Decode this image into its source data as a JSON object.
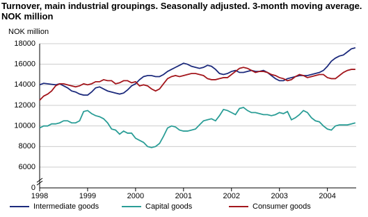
{
  "chart_data": {
    "type": "line",
    "title": "Turnover, main industrial groupings. Seasonally adjusted. 3-month moving average. NOK million",
    "y_label": "NOK million",
    "x": [
      1998.0,
      1998.083,
      1998.167,
      1998.25,
      1998.333,
      1998.417,
      1998.5,
      1998.583,
      1998.667,
      1998.75,
      1998.833,
      1998.917,
      1999.0,
      1999.083,
      1999.167,
      1999.25,
      1999.333,
      1999.417,
      1999.5,
      1999.583,
      1999.667,
      1999.75,
      1999.833,
      1999.917,
      2000.0,
      2000.083,
      2000.167,
      2000.25,
      2000.333,
      2000.417,
      2000.5,
      2000.583,
      2000.667,
      2000.75,
      2000.833,
      2000.917,
      2001.0,
      2001.083,
      2001.167,
      2001.25,
      2001.333,
      2001.417,
      2001.5,
      2001.583,
      2001.667,
      2001.75,
      2001.833,
      2001.917,
      2002.0,
      2002.083,
      2002.167,
      2002.25,
      2002.333,
      2002.417,
      2002.5,
      2002.583,
      2002.667,
      2002.75,
      2002.833,
      2002.917,
      2003.0,
      2003.083,
      2003.167,
      2003.25,
      2003.333,
      2003.417,
      2003.5,
      2003.583,
      2003.667,
      2003.75,
      2003.833,
      2003.917,
      2004.0,
      2004.083,
      2004.167,
      2004.25,
      2004.333,
      2004.417,
      2004.5,
      2004.583
    ],
    "series": [
      {
        "name": "Intermediate goods",
        "color": "#1c2a7c",
        "values": [
          14000,
          14150,
          14100,
          14050,
          14000,
          14100,
          13900,
          13700,
          13400,
          13300,
          13100,
          13000,
          13000,
          13300,
          13700,
          13800,
          13600,
          13400,
          13300,
          13200,
          13100,
          13200,
          13500,
          13900,
          14100,
          14500,
          14800,
          14900,
          14900,
          14800,
          14800,
          15000,
          15300,
          15500,
          15700,
          15900,
          16100,
          16000,
          15800,
          15700,
          15600,
          15700,
          15900,
          15800,
          15500,
          15100,
          15000,
          15100,
          15300,
          15400,
          15200,
          15200,
          15300,
          15400,
          15300,
          15300,
          15400,
          15200,
          14900,
          14600,
          14400,
          14400,
          14600,
          14700,
          14800,
          14900,
          14900,
          14900,
          15000,
          15100,
          15200,
          15400,
          15800,
          16300,
          16600,
          16800,
          16900,
          17200,
          17500,
          17600
        ]
      },
      {
        "name": "Capital goods",
        "color": "#2a9d96",
        "values": [
          9800,
          10000,
          10000,
          10200,
          10200,
          10300,
          10500,
          10500,
          10300,
          10300,
          10500,
          11400,
          11500,
          11200,
          11000,
          10900,
          10700,
          10300,
          9700,
          9600,
          9200,
          9500,
          9300,
          9300,
          8800,
          8600,
          8400,
          8000,
          7900,
          8000,
          8300,
          9000,
          9800,
          10000,
          9900,
          9600,
          9500,
          9500,
          9600,
          9700,
          10100,
          10500,
          10600,
          10700,
          10500,
          11000,
          11600,
          11500,
          11300,
          11100,
          11700,
          11800,
          11500,
          11300,
          11300,
          11200,
          11100,
          11100,
          11000,
          11100,
          11300,
          11200,
          11400,
          10600,
          10800,
          11100,
          11500,
          11300,
          10800,
          10500,
          10400,
          10000,
          9700,
          9600,
          10000,
          10100,
          10100,
          10100,
          10200,
          10300
        ]
      },
      {
        "name": "Consumer goods",
        "color": "#a3161c",
        "values": [
          12500,
          12900,
          13100,
          13400,
          13900,
          14100,
          14100,
          14000,
          13900,
          13800,
          13900,
          14100,
          14000,
          14100,
          14300,
          14300,
          14500,
          14400,
          14400,
          14100,
          14200,
          14400,
          14400,
          14200,
          14300,
          13900,
          14000,
          13900,
          13600,
          13400,
          13600,
          14100,
          14600,
          14800,
          14900,
          14800,
          14900,
          15000,
          15100,
          15100,
          15000,
          14900,
          14600,
          14500,
          14500,
          14600,
          14700,
          14700,
          15000,
          15300,
          15600,
          15700,
          15600,
          15400,
          15200,
          15300,
          15300,
          15200,
          15000,
          14900,
          14700,
          14600,
          14400,
          14500,
          14800,
          15000,
          14900,
          14700,
          14800,
          14900,
          15000,
          15000,
          14700,
          14600,
          14600,
          14900,
          15200,
          15400,
          15500,
          15500
        ]
      }
    ],
    "xlim": [
      1998,
      2004.6
    ],
    "xticks": [
      1998,
      1999,
      2000,
      2001,
      2002,
      2003,
      2004
    ],
    "ylim": [
      0,
      18000
    ],
    "yticks": [
      0,
      6000,
      8000,
      10000,
      12000,
      14000,
      16000,
      18000
    ],
    "y_break": [
      0,
      6000
    ],
    "grid": true,
    "legend": "bottom"
  }
}
